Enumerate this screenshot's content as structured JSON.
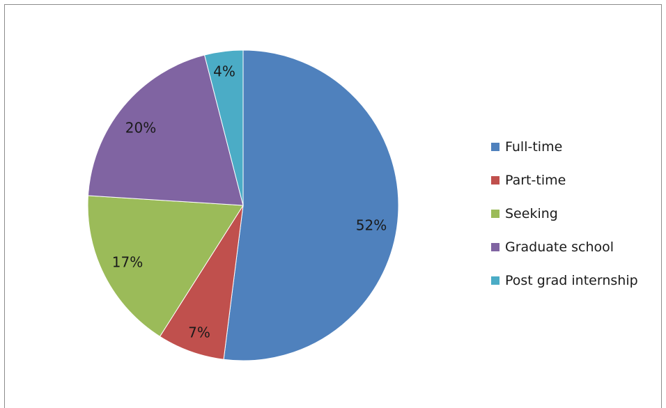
{
  "chart_data": {
    "type": "pie",
    "title": "",
    "categories": [
      "Full-time",
      "Part-time",
      "Seeking",
      "Graduate school",
      "Post grad internship"
    ],
    "values": [
      52,
      7,
      17,
      20,
      4
    ],
    "data_labels": [
      "52%",
      "7%",
      "17%",
      "20%",
      "4%"
    ],
    "colors": [
      "#4f81bd",
      "#c0504d",
      "#9bbb59",
      "#8064a2",
      "#4bacc6"
    ],
    "start_angle_deg": 0,
    "direction": "clockwise",
    "legend_position": "right"
  },
  "legend": {
    "items": [
      {
        "label": "Full-time",
        "color": "#4f81bd"
      },
      {
        "label": "Part-time",
        "color": "#c0504d"
      },
      {
        "label": "Seeking",
        "color": "#9bbb59"
      },
      {
        "label": "Graduate school",
        "color": "#8064a2"
      },
      {
        "label": "Post grad internship",
        "color": "#4bacc6"
      }
    ]
  }
}
